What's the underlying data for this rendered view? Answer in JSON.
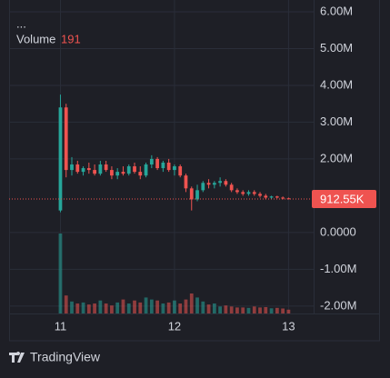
{
  "chart_data": {
    "type": "candlestick",
    "legend_menu": "...",
    "x": [
      11.0,
      11.05,
      11.1,
      11.15,
      11.2,
      11.25,
      11.3,
      11.35,
      11.4,
      11.45,
      11.5,
      11.55,
      11.6,
      11.65,
      11.7,
      11.75,
      11.8,
      11.85,
      11.9,
      11.95,
      12.0,
      12.05,
      12.1,
      12.15,
      12.2,
      12.25,
      12.3,
      12.35,
      12.4,
      12.45,
      12.5,
      12.55,
      12.6,
      12.65,
      12.7,
      12.75,
      12.8,
      12.85,
      12.9,
      12.95,
      13.0
    ],
    "open": [
      600000,
      3400000,
      1700000,
      1850000,
      1650000,
      1750000,
      1700000,
      1600000,
      1850000,
      1700000,
      1550000,
      1650000,
      1600000,
      1800000,
      1650000,
      1550000,
      1850000,
      2000000,
      1750000,
      1900000,
      1700000,
      1800000,
      1550000,
      1200000,
      900000,
      1150000,
      1350000,
      1300000,
      1350000,
      1400000,
      1300000,
      1150000,
      1100000,
      1050000,
      1100000,
      1050000,
      1000000,
      950000,
      980000,
      950000,
      930000
    ],
    "high": [
      3750000,
      3500000,
      2050000,
      1950000,
      1800000,
      1900000,
      1850000,
      1950000,
      1950000,
      1800000,
      1750000,
      1800000,
      1850000,
      1900000,
      1800000,
      1900000,
      2100000,
      2050000,
      1950000,
      2000000,
      1850000,
      1850000,
      1600000,
      1250000,
      1300000,
      1400000,
      1450000,
      1400000,
      1500000,
      1450000,
      1350000,
      1200000,
      1150000,
      1150000,
      1150000,
      1100000,
      1050000,
      1000000,
      1000000,
      980000,
      950000
    ],
    "low": [
      550000,
      1500000,
      1550000,
      1600000,
      1550000,
      1600000,
      1550000,
      1550000,
      1650000,
      1450000,
      1450000,
      1550000,
      1550000,
      1600000,
      1450000,
      1500000,
      1750000,
      1700000,
      1650000,
      1650000,
      1550000,
      1500000,
      1100000,
      600000,
      850000,
      1100000,
      1200000,
      1200000,
      1250000,
      1250000,
      1100000,
      1050000,
      1000000,
      1000000,
      1000000,
      950000,
      900000,
      900000,
      930000,
      900000,
      900000
    ],
    "close": [
      3400000,
      1700000,
      1850000,
      1650000,
      1750000,
      1700000,
      1600000,
      1850000,
      1700000,
      1550000,
      1650000,
      1600000,
      1800000,
      1650000,
      1550000,
      1850000,
      2000000,
      1750000,
      1900000,
      1700000,
      1800000,
      1550000,
      1200000,
      900000,
      1150000,
      1350000,
      1300000,
      1350000,
      1400000,
      1300000,
      1150000,
      1100000,
      1050000,
      1100000,
      1050000,
      1000000,
      950000,
      980000,
      950000,
      930000,
      912550
    ],
    "up_color": "#26a69a",
    "down_color": "#ef5350",
    "volume": {
      "name": "Volume",
      "values": [
        4000,
        900,
        600,
        500,
        550,
        450,
        500,
        650,
        500,
        400,
        550,
        700,
        500,
        650,
        550,
        800,
        700,
        650,
        500,
        550,
        650,
        500,
        700,
        1000,
        800,
        600,
        450,
        500,
        350,
        400,
        350,
        300,
        300,
        280,
        350,
        300,
        320,
        260,
        280,
        250,
        191
      ]
    },
    "last_price": {
      "value": 912550,
      "label": "912.55K"
    },
    "xlim": [
      10.55,
      13.22
    ],
    "xticks": [
      11,
      12,
      13
    ],
    "ylim": [
      -2200000,
      6320000
    ],
    "yticks": [
      {
        "value": -2000000,
        "label": "-2.00M"
      },
      {
        "value": -1000000,
        "label": "-1.00M"
      },
      {
        "value": 0,
        "label": "0.0000"
      },
      {
        "value": 2000000,
        "label": "2.00M"
      },
      {
        "value": 3000000,
        "label": "3.00M"
      },
      {
        "value": 4000000,
        "label": "4.00M"
      },
      {
        "value": 5000000,
        "label": "5.00M"
      },
      {
        "value": 6000000,
        "label": "6.00M"
      }
    ],
    "grid": true,
    "brand": "TradingView"
  }
}
